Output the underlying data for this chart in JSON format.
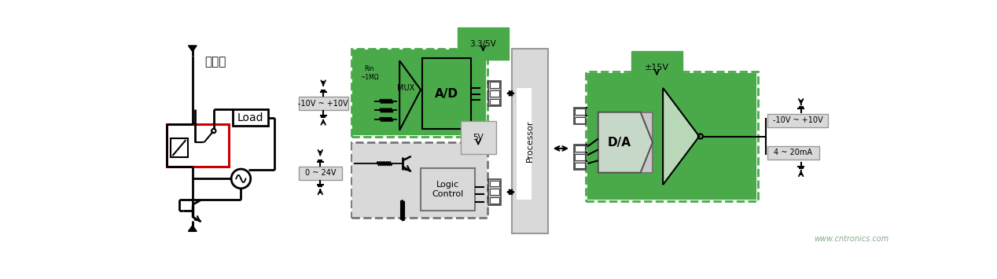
{
  "bg_color": "#ffffff",
  "fig_width": 12.68,
  "fig_height": 3.55,
  "green_color": "#4aaa4a",
  "gray_fill": "#cccccc",
  "light_gray_fill": "#d9d9d9",
  "dashed_border_color": "#555555",
  "text_black": "#111111",
  "red_color": "#cc0000",
  "website": "www.cntronics.com",
  "relay_label": "继电器",
  "load_label": "Load",
  "voltage1_label": "-10V ~ +10V",
  "voltage2_label": "0 ~ 24V",
  "voltage3_label": "3.3/5V",
  "voltage4_label": "5V",
  "voltage5_label": "±15V",
  "voltage6_label": "-10V ~ +10V",
  "voltage7_label": "4 ~ 20mA",
  "mux_label": "MUX",
  "ad_label": "A/D",
  "da_label": "D/A",
  "logic_label": "Logic\nControl",
  "processor_label": "Processor",
  "rin_label": "Rin\n~1MΩ"
}
